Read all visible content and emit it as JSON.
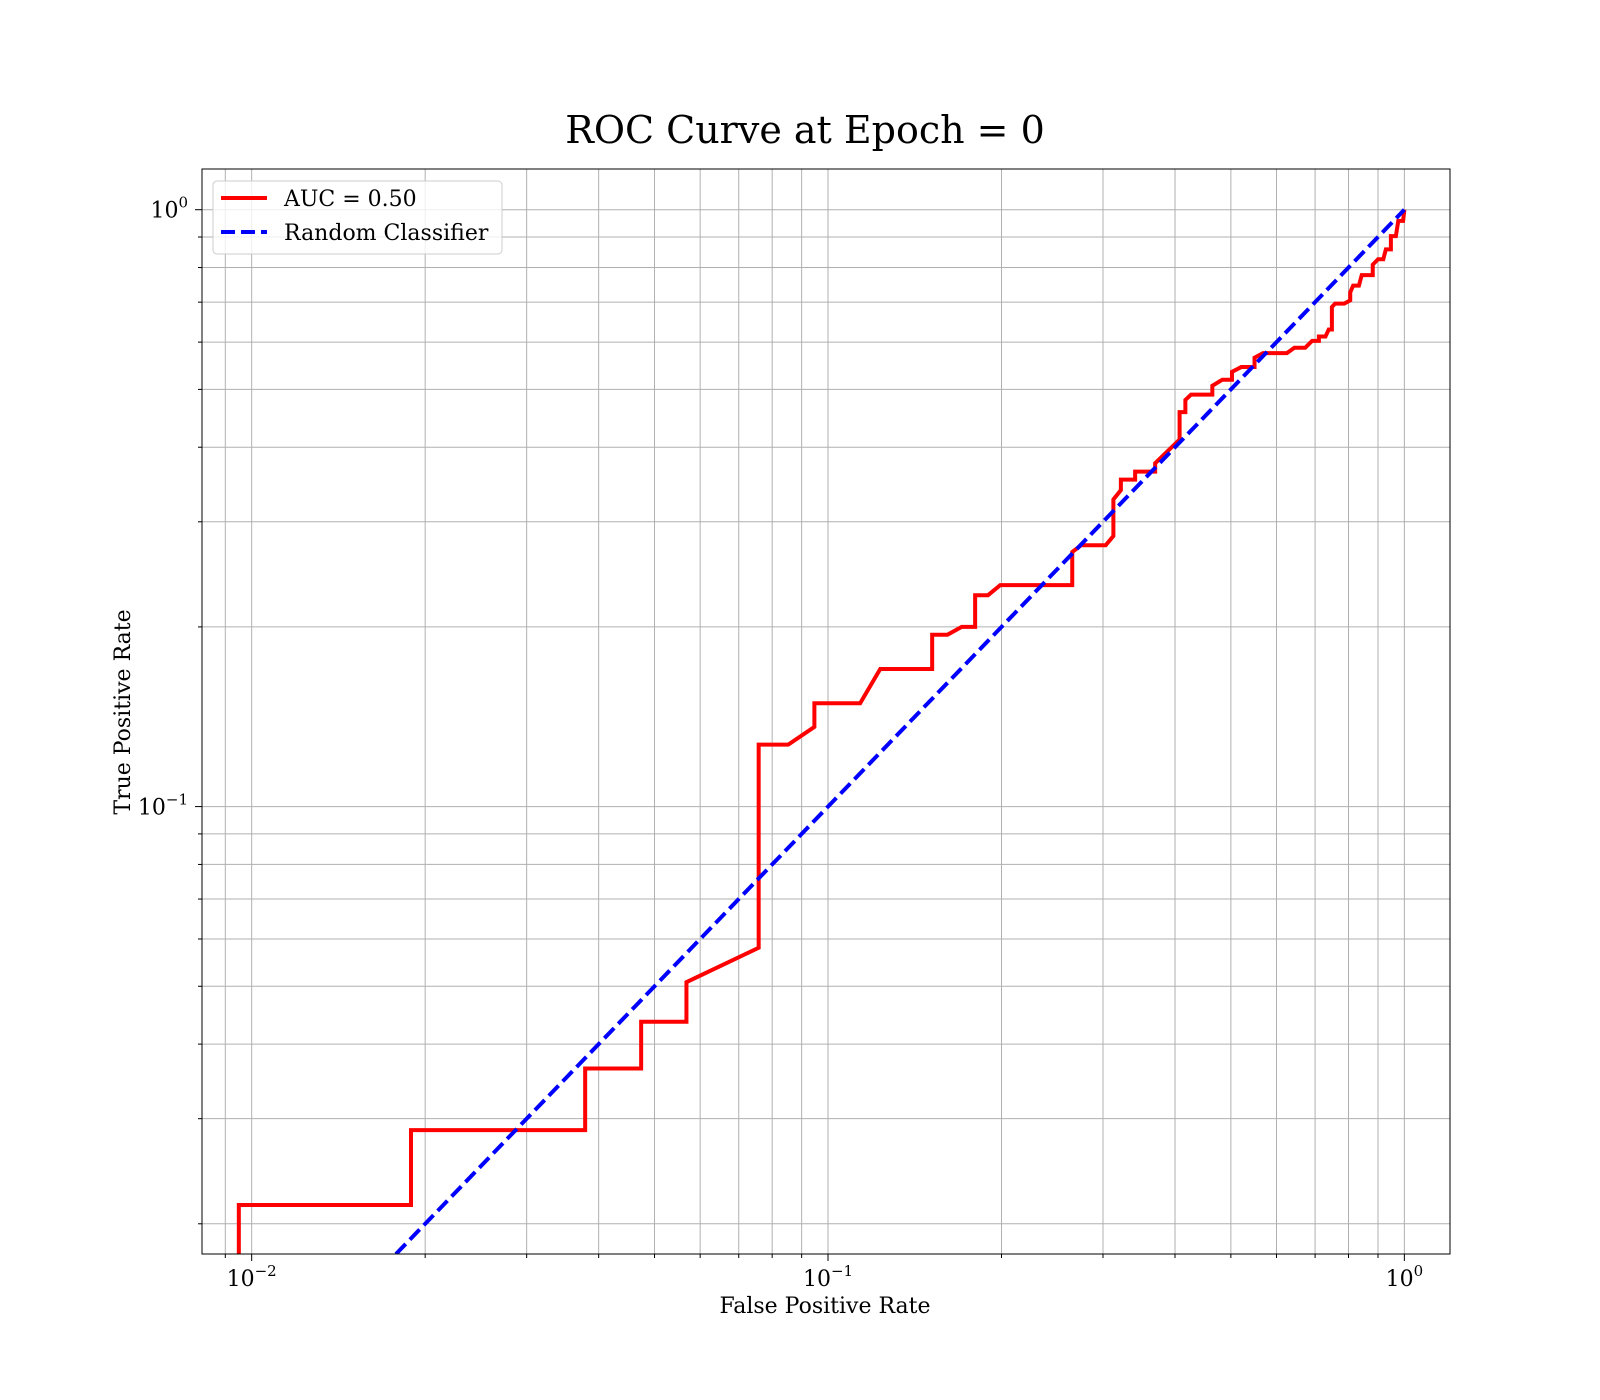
{
  "chart_data": {
    "type": "line",
    "title": "ROC Curve at Epoch = 0",
    "xlabel": "False Positive Rate",
    "ylabel": "True Positive Rate",
    "xscale": "log",
    "yscale": "log",
    "xlim": [
      0.0082,
      1.2
    ],
    "ylim": [
      0.0178,
      1.17
    ],
    "grid": true,
    "grid_which": "both",
    "legend_position": "upper left",
    "x_ticks": [
      {
        "value": 0.01,
        "base": "10",
        "exp": "−2"
      },
      {
        "value": 0.1,
        "base": "10",
        "exp": "−1"
      },
      {
        "value": 1,
        "base": "10",
        "exp": "0"
      }
    ],
    "y_ticks": [
      {
        "value": 0.1,
        "base": "10",
        "exp": "−1"
      },
      {
        "value": 1,
        "base": "10",
        "exp": "0"
      }
    ],
    "series": [
      {
        "name": "AUC = 0.50",
        "color": "#ff0000",
        "style": "solid",
        "points": [
          [
            0.0095,
            0.016
          ],
          [
            0.0095,
            0.0215
          ],
          [
            0.0189,
            0.0215
          ],
          [
            0.0189,
            0.0287
          ],
          [
            0.0379,
            0.0287
          ],
          [
            0.0379,
            0.0364
          ],
          [
            0.0474,
            0.0364
          ],
          [
            0.0474,
            0.0436
          ],
          [
            0.0568,
            0.0436
          ],
          [
            0.0568,
            0.0508
          ],
          [
            0.0758,
            0.058
          ],
          [
            0.0758,
            0.127
          ],
          [
            0.0853,
            0.127
          ],
          [
            0.0947,
            0.136
          ],
          [
            0.0947,
            0.149
          ],
          [
            0.1137,
            0.149
          ],
          [
            0.1232,
            0.17
          ],
          [
            0.1516,
            0.17
          ],
          [
            0.1516,
            0.194
          ],
          [
            0.1611,
            0.194
          ],
          [
            0.1706,
            0.2
          ],
          [
            0.18,
            0.2
          ],
          [
            0.18,
            0.226
          ],
          [
            0.1895,
            0.226
          ],
          [
            0.199,
            0.235
          ],
          [
            0.2653,
            0.235
          ],
          [
            0.2653,
            0.267
          ],
          [
            0.2748,
            0.274
          ],
          [
            0.3032,
            0.274
          ],
          [
            0.3127,
            0.284
          ],
          [
            0.3127,
            0.327
          ],
          [
            0.3222,
            0.339
          ],
          [
            0.3222,
            0.353
          ],
          [
            0.3411,
            0.353
          ],
          [
            0.3411,
            0.364
          ],
          [
            0.3695,
            0.364
          ],
          [
            0.3695,
            0.376
          ],
          [
            0.4074,
            0.412
          ],
          [
            0.4074,
            0.458
          ],
          [
            0.4169,
            0.458
          ],
          [
            0.4169,
            0.48
          ],
          [
            0.4264,
            0.49
          ],
          [
            0.4643,
            0.49
          ],
          [
            0.4643,
            0.507
          ],
          [
            0.4833,
            0.519
          ],
          [
            0.5022,
            0.519
          ],
          [
            0.5022,
            0.535
          ],
          [
            0.5212,
            0.545
          ],
          [
            0.5496,
            0.545
          ],
          [
            0.5496,
            0.565
          ],
          [
            0.5686,
            0.575
          ],
          [
            0.5875,
            0.575
          ],
          [
            0.6254,
            0.575
          ],
          [
            0.6444,
            0.587
          ],
          [
            0.6728,
            0.587
          ],
          [
            0.6918,
            0.603
          ],
          [
            0.7107,
            0.603
          ],
          [
            0.7107,
            0.613
          ],
          [
            0.7297,
            0.613
          ],
          [
            0.7392,
            0.63
          ],
          [
            0.7486,
            0.63
          ],
          [
            0.7486,
            0.687
          ],
          [
            0.7581,
            0.696
          ],
          [
            0.7865,
            0.696
          ],
          [
            0.8055,
            0.705
          ],
          [
            0.8055,
            0.727
          ],
          [
            0.8149,
            0.746
          ],
          [
            0.8339,
            0.746
          ],
          [
            0.8434,
            0.777
          ],
          [
            0.8813,
            0.777
          ],
          [
            0.8813,
            0.809
          ],
          [
            0.9002,
            0.826
          ],
          [
            0.9192,
            0.826
          ],
          [
            0.9287,
            0.858
          ],
          [
            0.9476,
            0.858
          ],
          [
            0.9476,
            0.903
          ],
          [
            0.9666,
            0.903
          ],
          [
            0.976,
            0.958
          ],
          [
            0.995,
            0.958
          ],
          [
            1.0,
            1.0
          ]
        ]
      },
      {
        "name": "Random Classifier",
        "color": "#0000ff",
        "style": "dashed",
        "points": [
          [
            0.0178,
            0.0178
          ],
          [
            1.0,
            1.0
          ]
        ]
      }
    ]
  }
}
